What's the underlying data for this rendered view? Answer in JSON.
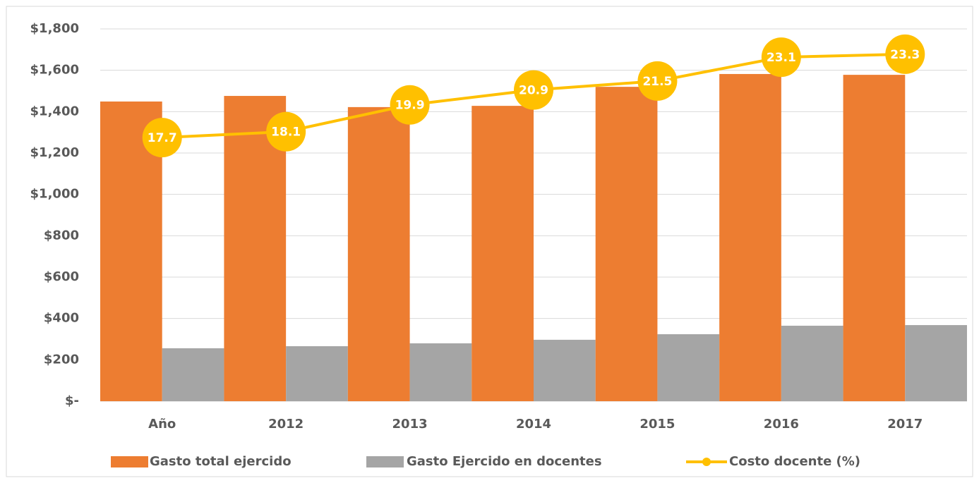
{
  "chart_data": {
    "type": "bar_line",
    "categories": [
      "Año",
      "2012",
      "2013",
      "2014",
      "2015",
      "2016",
      "2017"
    ],
    "series": [
      {
        "name": "Gasto total ejercido",
        "color": "#ED7D31",
        "values": [
          1449,
          1476,
          1422,
          1428,
          1520,
          1582,
          1578
        ]
      },
      {
        "name": "Gasto Ejercido en docentes",
        "color": "#A5A5A5",
        "values": [
          256,
          266,
          280,
          297,
          324,
          365,
          368
        ]
      },
      {
        "name": "Costo docente (%)",
        "color": "#FFC000",
        "axis": "y2",
        "values": [
          17.7,
          18.1,
          19.9,
          20.9,
          21.5,
          23.1,
          23.3
        ]
      }
    ],
    "ylim": [
      0,
      1800
    ],
    "yticks": [
      {
        "value": 0,
        "label": "$-"
      },
      {
        "value": 200,
        "label": "$200"
      },
      {
        "value": 400,
        "label": "$400"
      },
      {
        "value": 600,
        "label": "$600"
      },
      {
        "value": 800,
        "label": "$800"
      },
      {
        "value": 1000,
        "label": "$1,000"
      },
      {
        "value": 1200,
        "label": "$1,200"
      },
      {
        "value": 1400,
        "label": "$1,400"
      },
      {
        "value": 1600,
        "label": "$1,600"
      },
      {
        "value": 1800,
        "label": "$1,800"
      }
    ],
    "y2lim": [
      0,
      25
    ],
    "grid": true,
    "legend": "bottom"
  }
}
